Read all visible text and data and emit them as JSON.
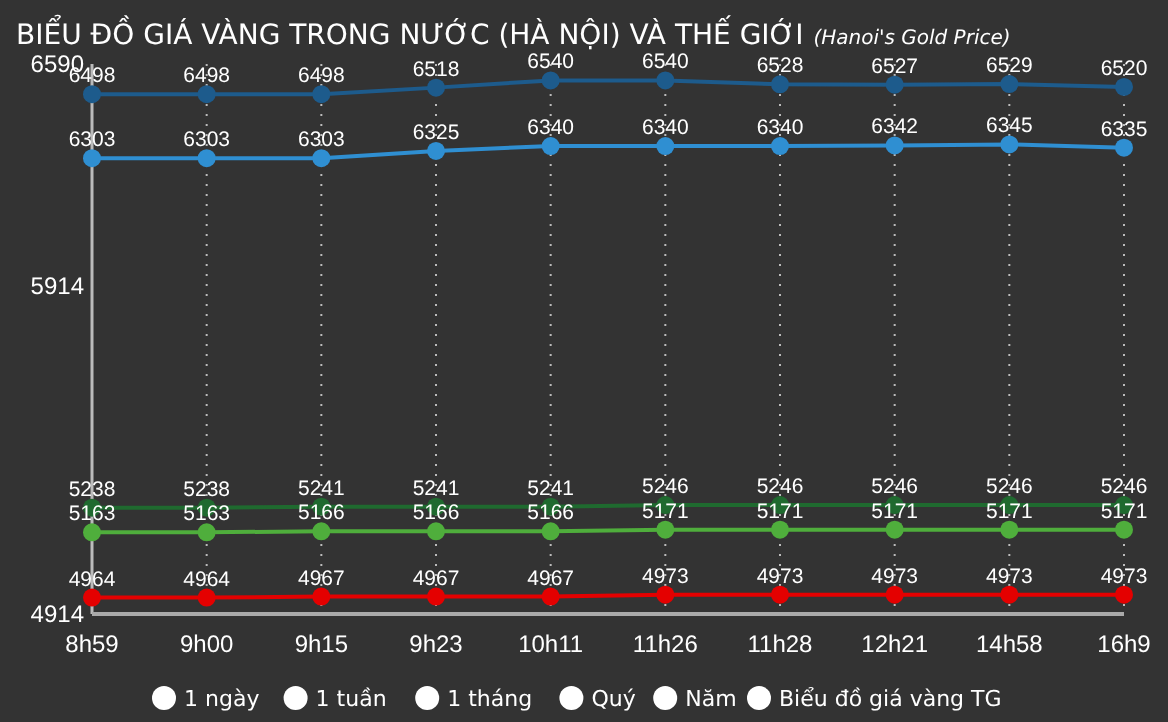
{
  "chart_data": {
    "type": "line",
    "title": "BIỂU ĐỒ GIÁ VÀNG TRONG NƯỚC (HÀ NỘI) VÀ THẾ GIỚI",
    "subtitle": "(Hanoi's Gold Price)",
    "categories": [
      "8h59",
      "9h00",
      "9h15",
      "9h23",
      "10h11",
      "11h26",
      "11h28",
      "12h21",
      "14h58",
      "16h9"
    ],
    "series": [
      {
        "color": "#1d5b8c",
        "values": [
          6498,
          6498,
          6498,
          6518,
          6540,
          6540,
          6528,
          6527,
          6529,
          6520
        ]
      },
      {
        "color": "#2f8fd2",
        "values": [
          6303,
          6303,
          6303,
          6325,
          6340,
          6340,
          6340,
          6342,
          6345,
          6335
        ]
      },
      {
        "color": "#1f6a2f",
        "values": [
          5238,
          5238,
          5241,
          5241,
          5241,
          5246,
          5246,
          5246,
          5246,
          5246
        ]
      },
      {
        "color": "#4fae3c",
        "values": [
          5163,
          5163,
          5166,
          5166,
          5166,
          5171,
          5171,
          5171,
          5171,
          5171
        ]
      },
      {
        "color": "#e40000",
        "values": [
          4964,
          4964,
          4967,
          4967,
          4967,
          4973,
          4973,
          4973,
          4973,
          4973
        ]
      }
    ],
    "ylim": [
      4914,
      6590
    ],
    "yticks": [
      4914,
      5914,
      6590
    ],
    "grid": "x",
    "marker": "circle",
    "data_labels": true,
    "annotations": [
      "1 ngày",
      "1 tuần",
      "1 tháng",
      "Quý",
      "Năm",
      "Biểu đồ giá vàng TG"
    ]
  }
}
